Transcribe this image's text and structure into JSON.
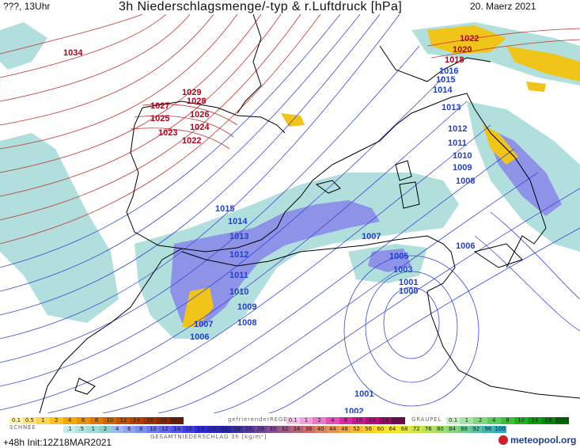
{
  "header": {
    "left": "???, 13Uhr",
    "title": "3h Niederschlagsmenge/-typ & r.Luftdruck [hPa]",
    "date": "20. Maerz 2021"
  },
  "footer": {
    "left": "+48h  Init:12Z18MAR2021",
    "logo_text": "meteopool.org"
  },
  "colors": {
    "high_label": "#b3001b",
    "low_label": "#1f3fd1",
    "coast": "#000000",
    "high_isobar": "#c0352f",
    "low_isobar": "#3b4bd6",
    "rain_light": "#a8dcd9",
    "rain_mid": "#7f7fe6",
    "snow": "#f0c419",
    "logo_red": "#d0212a",
    "logo_blue": "#1c3f8c"
  },
  "isobar_labels": [
    {
      "text": "1034",
      "type": "high"
    },
    {
      "text": "1029",
      "type": "high"
    },
    {
      "text": "1028",
      "type": "high"
    },
    {
      "text": "1027",
      "type": "high"
    },
    {
      "text": "1026",
      "type": "high"
    },
    {
      "text": "1025",
      "type": "high"
    },
    {
      "text": "1024",
      "type": "high"
    },
    {
      "text": "1023",
      "type": "high"
    },
    {
      "text": "1022",
      "type": "high"
    },
    {
      "text": "1022",
      "type": "high"
    },
    {
      "text": "1020",
      "type": "high"
    },
    {
      "text": "1018",
      "type": "high"
    },
    {
      "text": "1016",
      "type": "low"
    },
    {
      "text": "1015",
      "type": "low"
    },
    {
      "text": "1014",
      "type": "low"
    },
    {
      "text": "1013",
      "type": "low"
    },
    {
      "text": "1012",
      "type": "low"
    },
    {
      "text": "1011",
      "type": "low"
    },
    {
      "text": "1010",
      "type": "low"
    },
    {
      "text": "1009",
      "type": "low"
    },
    {
      "text": "1008",
      "type": "low"
    },
    {
      "text": "1015",
      "type": "low"
    },
    {
      "text": "1014",
      "type": "low"
    },
    {
      "text": "1013",
      "type": "low"
    },
    {
      "text": "1012",
      "type": "low"
    },
    {
      "text": "1011",
      "type": "low"
    },
    {
      "text": "1010",
      "type": "low"
    },
    {
      "text": "1009",
      "type": "low"
    },
    {
      "text": "1008",
      "type": "low"
    },
    {
      "text": "1007",
      "type": "low"
    },
    {
      "text": "1006",
      "type": "low"
    },
    {
      "text": "1007",
      "type": "low"
    },
    {
      "text": "1006",
      "type": "low"
    },
    {
      "text": "1005",
      "type": "low"
    },
    {
      "text": "1003",
      "type": "low"
    },
    {
      "text": "1001",
      "type": "low"
    },
    {
      "text": "1000",
      "type": "low"
    },
    {
      "text": "1001",
      "type": "low"
    },
    {
      "text": "1002",
      "type": "low"
    }
  ],
  "legend": {
    "snow_title": "SCHNEE",
    "snow_values": [
      "0.1",
      "0.5",
      "1",
      "2",
      "4",
      "6",
      "8",
      "10",
      "12",
      "14",
      "16",
      "18",
      "2025+"
    ],
    "freezing_title": "gefrierenderREGEN",
    "freezing_values": [
      "0.1",
      "1",
      "2",
      "4",
      "8",
      "10",
      "14",
      "16",
      "2025+"
    ],
    "graupel_title": "GRAUPEL",
    "graupel_values": [
      "0.1",
      "1",
      "2",
      "4",
      "8",
      "10",
      "14",
      "16",
      "2025+"
    ],
    "total_values": [
      ".1",
      ".5",
      "1",
      "2",
      "4",
      "6",
      "8",
      "10",
      "12",
      "14",
      "16",
      "18",
      "20",
      "22",
      "24",
      "26",
      "28",
      "30",
      "32",
      "34",
      "36",
      "40",
      "44",
      "48",
      "52",
      "56",
      "60",
      "64",
      "68",
      "72",
      "76",
      "80",
      "84",
      "88",
      "92",
      "96",
      "100"
    ],
    "total_title": "GESAMTNIEDERSCHLAG 3h [kg/m²]"
  }
}
